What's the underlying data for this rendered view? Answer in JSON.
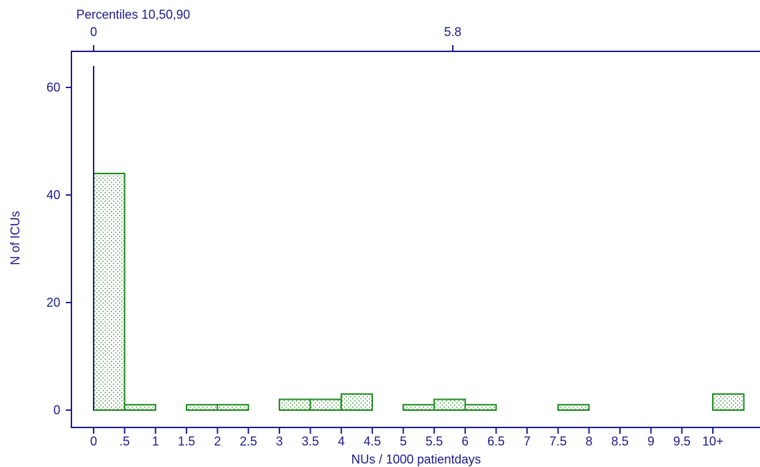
{
  "chart_data": {
    "type": "bar",
    "title": "Percentiles 10,50,90",
    "xlabel": "NUs / 1000 patientdays",
    "ylabel": "N of ICUs",
    "ylim": [
      0,
      66
    ],
    "yticks": [
      0,
      20,
      40,
      60
    ],
    "categories": [
      "0",
      ".5",
      "1",
      "1.5",
      "2",
      "2.5",
      "3",
      "3.5",
      "4",
      "4.5",
      "5",
      "5.5",
      "6",
      "6.5",
      "7",
      "7.5",
      "8",
      "8.5",
      "9",
      "9.5",
      "10+"
    ],
    "bins": [
      {
        "start": 0,
        "end": 0.5,
        "value": 44
      },
      {
        "start": 0.5,
        "end": 1,
        "value": 1
      },
      {
        "start": 1.5,
        "end": 2,
        "value": 1
      },
      {
        "start": 2,
        "end": 2.5,
        "value": 1
      },
      {
        "start": 3,
        "end": 3.5,
        "value": 2
      },
      {
        "start": 3.5,
        "end": 4,
        "value": 2
      },
      {
        "start": 4,
        "end": 4.5,
        "value": 3
      },
      {
        "start": 5,
        "end": 5.5,
        "value": 1
      },
      {
        "start": 5.5,
        "end": 6,
        "value": 2
      },
      {
        "start": 6,
        "end": 6.5,
        "value": 1
      },
      {
        "start": 7.5,
        "end": 8,
        "value": 1
      },
      {
        "start": 10,
        "end": 10.5,
        "value": 3
      }
    ],
    "percentile_markers": [
      {
        "label": "0",
        "x": 0
      },
      {
        "label": "5.8",
        "x": 5.8
      }
    ],
    "percentile_line": {
      "x": 0,
      "value": 64
    },
    "grid": false,
    "colors": {
      "axis": "#1c1c8c",
      "bar": "#1a8a1a"
    }
  }
}
